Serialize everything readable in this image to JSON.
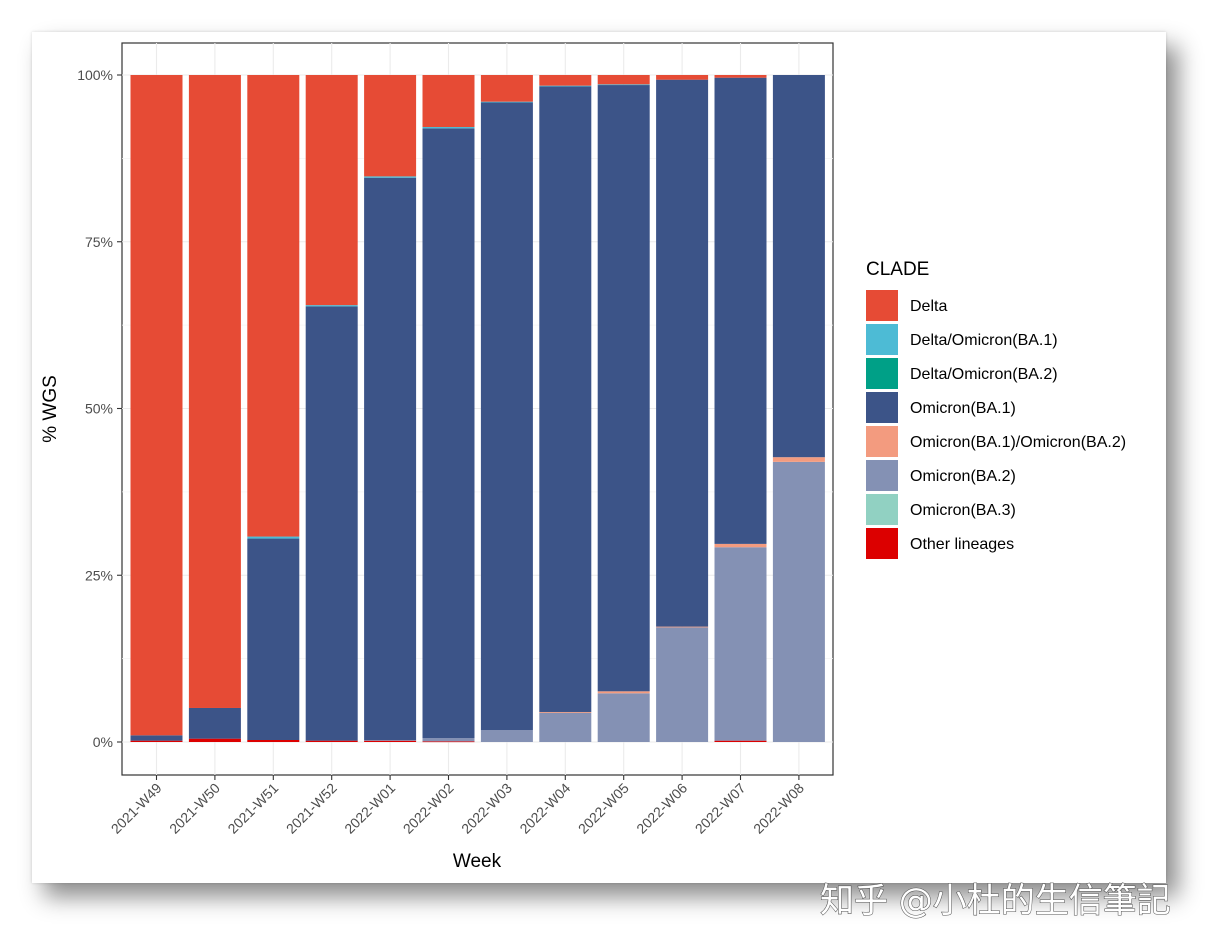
{
  "chart_data": {
    "type": "bar",
    "stacked": true,
    "title": "",
    "xlabel": "Week",
    "ylabel": "% WGS",
    "ylim": [
      0,
      100
    ],
    "y_ticks": [
      "0%",
      "25%",
      "50%",
      "75%",
      "100%"
    ],
    "y_tick_values": [
      0,
      25,
      50,
      75,
      100
    ],
    "categories": [
      "2021-W49",
      "2021-W50",
      "2021-W51",
      "2021-W52",
      "2022-W01",
      "2022-W02",
      "2022-W03",
      "2022-W04",
      "2022-W05",
      "2022-W06",
      "2022-W07",
      "2022-W08"
    ],
    "legend_title": "CLADE",
    "legend_position": "right",
    "series": [
      {
        "name": "Other lineages",
        "color": "#DC0000",
        "values": [
          0.2,
          0.5,
          0.3,
          0.2,
          0.2,
          0.1,
          0.0,
          0.0,
          0.0,
          0.0,
          0.2,
          0.0
        ]
      },
      {
        "name": "Omicron(BA.3)",
        "color": "#91D1C2",
        "values": [
          0,
          0,
          0,
          0,
          0,
          0,
          0,
          0,
          0,
          0,
          0,
          0
        ]
      },
      {
        "name": "Omicron(BA.2)",
        "color": "#8491B4",
        "values": [
          0,
          0,
          0,
          0,
          0.1,
          0.5,
          1.8,
          4.4,
          7.3,
          17.2,
          29.0,
          42.0
        ]
      },
      {
        "name": "Omicron(BA.1)/Omicron(BA.2)",
        "color": "#F39B7F",
        "values": [
          0,
          0,
          0,
          0,
          0,
          0,
          0,
          0.1,
          0.3,
          0.1,
          0.5,
          0.7
        ]
      },
      {
        "name": "Omicron(BA.1)",
        "color": "#3C5488",
        "values": [
          0.8,
          4.6,
          30.2,
          65.1,
          84.3,
          91.4,
          94.1,
          93.8,
          90.9,
          82.0,
          69.9,
          57.3
        ]
      },
      {
        "name": "Delta/Omicron(BA.2)",
        "color": "#00A087",
        "values": [
          0,
          0,
          0,
          0,
          0,
          0,
          0,
          0,
          0,
          0,
          0,
          0
        ]
      },
      {
        "name": "Delta/Omicron(BA.1)",
        "color": "#4DBBD5",
        "values": [
          0,
          0,
          0.3,
          0.2,
          0.2,
          0.2,
          0.1,
          0.1,
          0.1,
          0.0,
          0.0,
          0.0
        ]
      },
      {
        "name": "Delta",
        "color": "#E64B35",
        "values": [
          99.0,
          94.9,
          69.2,
          34.5,
          15.2,
          7.8,
          4.0,
          1.6,
          1.4,
          0.7,
          0.4,
          0.0
        ]
      }
    ],
    "legend_order": [
      "Delta",
      "Delta/Omicron(BA.1)",
      "Delta/Omicron(BA.2)",
      "Omicron(BA.1)",
      "Omicron(BA.1)/Omicron(BA.2)",
      "Omicron(BA.2)",
      "Omicron(BA.3)",
      "Other lineages"
    ],
    "grid": true
  },
  "watermark": "知乎 @小杜的生信筆記"
}
